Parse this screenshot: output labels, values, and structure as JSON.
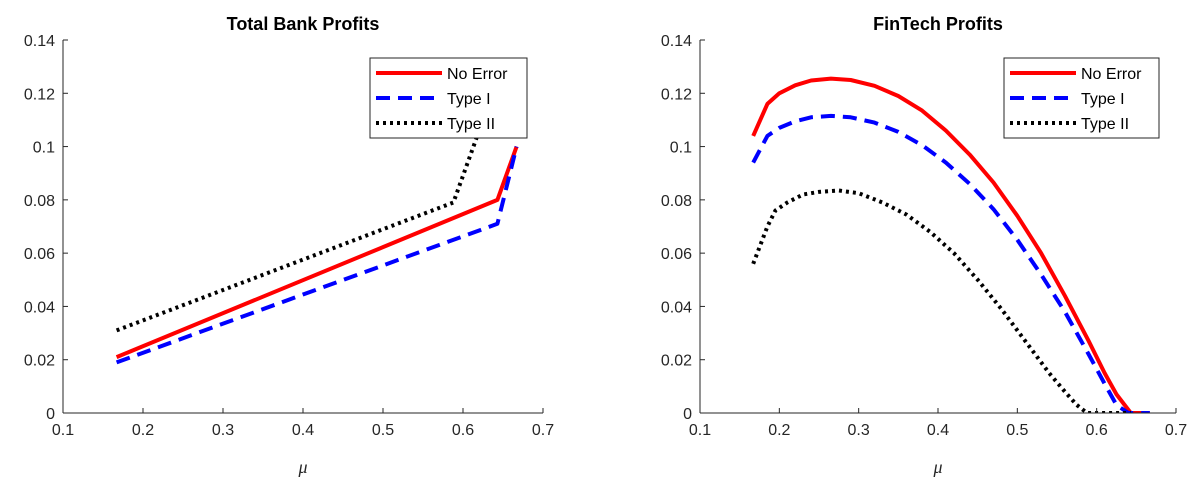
{
  "colors": {
    "no_error": "#ff0000",
    "type_i": "#0000ff",
    "type_ii": "#000000",
    "axis": "#262626"
  },
  "chart_data": [
    {
      "type": "line",
      "title": "Total Bank Profits",
      "xlabel": "μ",
      "ylabel": "",
      "xlim": [
        0.1,
        0.7
      ],
      "ylim": [
        0,
        0.14
      ],
      "xticks": [
        "0.1",
        "0.2",
        "0.3",
        "0.4",
        "0.5",
        "0.6",
        "0.7"
      ],
      "yticks": [
        "0",
        "0.02",
        "0.04",
        "0.06",
        "0.08",
        "0.1",
        "0.12",
        "0.14"
      ],
      "legend": "top-right",
      "grid": false,
      "series": [
        {
          "name": "No Error",
          "style": "solid",
          "color": "#ff0000",
          "x": [
            0.167,
            0.643,
            0.667
          ],
          "y": [
            0.021,
            0.08,
            0.1
          ]
        },
        {
          "name": "Type I",
          "style": "dashed",
          "color": "#0000ff",
          "x": [
            0.167,
            0.643,
            0.667
          ],
          "y": [
            0.019,
            0.071,
            0.1
          ]
        },
        {
          "name": "Type II",
          "style": "dotted",
          "color": "#000000",
          "x": [
            0.167,
            0.588,
            0.625
          ],
          "y": [
            0.031,
            0.079,
            0.11
          ]
        }
      ]
    },
    {
      "type": "line",
      "title": "FinTech Profits",
      "xlabel": "μ",
      "ylabel": "",
      "xlim": [
        0.1,
        0.7
      ],
      "ylim": [
        0,
        0.14
      ],
      "xticks": [
        "0.1",
        "0.2",
        "0.3",
        "0.4",
        "0.5",
        "0.6",
        "0.7"
      ],
      "yticks": [
        "0",
        "0.02",
        "0.04",
        "0.06",
        "0.08",
        "0.1",
        "0.12",
        "0.14"
      ],
      "legend": "top-right",
      "grid": false,
      "series": [
        {
          "name": "No Error",
          "style": "solid",
          "color": "#ff0000",
          "x": [
            0.167,
            0.185,
            0.2,
            0.22,
            0.24,
            0.265,
            0.29,
            0.32,
            0.35,
            0.38,
            0.41,
            0.44,
            0.47,
            0.5,
            0.53,
            0.56,
            0.59,
            0.61,
            0.625,
            0.643,
            0.667
          ],
          "y": [
            0.104,
            0.116,
            0.12,
            0.123,
            0.1248,
            0.1255,
            0.125,
            0.1228,
            0.119,
            0.1135,
            0.106,
            0.097,
            0.0865,
            0.074,
            0.06,
            0.044,
            0.027,
            0.015,
            0.007,
            0.0,
            0.0
          ]
        },
        {
          "name": "Type I",
          "style": "dashed",
          "color": "#0000ff",
          "x": [
            0.167,
            0.185,
            0.2,
            0.22,
            0.24,
            0.265,
            0.29,
            0.32,
            0.35,
            0.38,
            0.41,
            0.44,
            0.47,
            0.5,
            0.53,
            0.56,
            0.59,
            0.61,
            0.625,
            0.64,
            0.667
          ],
          "y": [
            0.094,
            0.104,
            0.107,
            0.1095,
            0.111,
            0.1115,
            0.111,
            0.109,
            0.1055,
            0.1005,
            0.094,
            0.086,
            0.0765,
            0.065,
            0.052,
            0.038,
            0.022,
            0.011,
            0.003,
            0.0,
            0.0
          ]
        },
        {
          "name": "Type II",
          "style": "dotted",
          "color": "#000000",
          "x": [
            0.167,
            0.185,
            0.195,
            0.21,
            0.23,
            0.25,
            0.275,
            0.3,
            0.33,
            0.36,
            0.39,
            0.42,
            0.45,
            0.48,
            0.51,
            0.54,
            0.56,
            0.575,
            0.588,
            0.62,
            0.643
          ],
          "y": [
            0.056,
            0.07,
            0.076,
            0.079,
            0.082,
            0.083,
            0.0835,
            0.0825,
            0.079,
            0.0745,
            0.068,
            0.06,
            0.05,
            0.039,
            0.027,
            0.015,
            0.008,
            0.003,
            0.0,
            0.0,
            0.0
          ]
        }
      ]
    }
  ]
}
